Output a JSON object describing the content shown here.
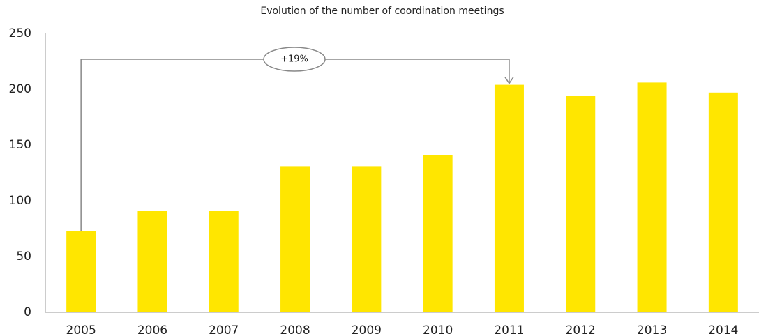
{
  "chart_data": {
    "type": "bar",
    "title": "Evolution of the number of coordination meetings",
    "categories": [
      "2005",
      "2006",
      "2007",
      "2008",
      "2009",
      "2010",
      "2011",
      "2012",
      "2013",
      "2014"
    ],
    "values": [
      73,
      91,
      91,
      131,
      131,
      141,
      204,
      194,
      206,
      197
    ],
    "color": "#ffe600",
    "ylim": [
      0,
      250
    ],
    "yticks": [
      0,
      50,
      100,
      150,
      200,
      250
    ],
    "grid": false,
    "annotation": "+19%"
  }
}
